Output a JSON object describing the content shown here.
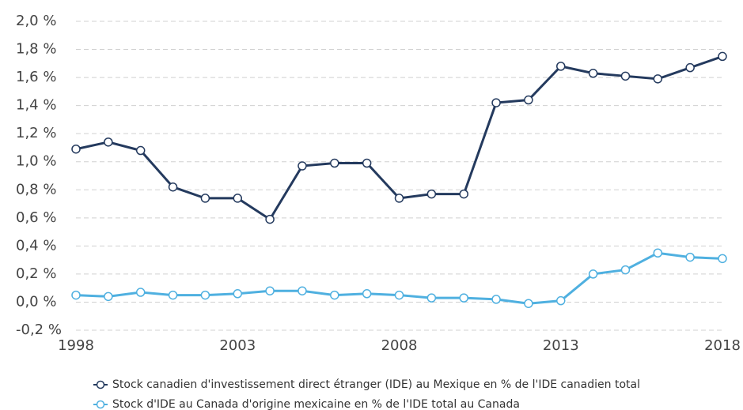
{
  "chart_data": {
    "type": "line",
    "x": [
      1998,
      1999,
      2000,
      2001,
      2002,
      2003,
      2004,
      2005,
      2006,
      2007,
      2008,
      2009,
      2010,
      2011,
      2012,
      2013,
      2014,
      2015,
      2016,
      2017,
      2018
    ],
    "series": [
      {
        "name": "Stock canadien d'investissement direct étranger (IDE) au Mexique en % de l'IDE canadien total",
        "color": "#243a5e",
        "values": [
          1.09,
          1.14,
          1.08,
          0.82,
          0.74,
          0.74,
          0.59,
          0.97,
          0.99,
          0.99,
          0.74,
          0.77,
          0.77,
          1.42,
          1.44,
          1.68,
          1.63,
          1.61,
          1.59,
          1.67,
          1.75
        ]
      },
      {
        "name": "Stock d'IDE au Canada d'origine mexicaine en % de l'IDE total au Canada",
        "color": "#4fb0e0",
        "values": [
          0.05,
          0.04,
          0.07,
          0.05,
          0.05,
          0.06,
          0.08,
          0.08,
          0.05,
          0.06,
          0.05,
          0.03,
          0.03,
          0.02,
          -0.01,
          0.01,
          0.2,
          0.23,
          0.35,
          0.32,
          0.31
        ]
      }
    ],
    "xlim": [
      1998,
      2018
    ],
    "xticks": [
      1998,
      2003,
      2008,
      2013,
      2018
    ],
    "ylim": [
      -0.2,
      2.0
    ],
    "yticks": [
      {
        "value": -0.2,
        "label": "-0,2 %"
      },
      {
        "value": 0,
        "label": "0,0 %"
      },
      {
        "value": 0.2,
        "label": "0,2 %"
      },
      {
        "value": 0.4,
        "label": "0,4 %"
      },
      {
        "value": 0.6,
        "label": "0,6 %"
      },
      {
        "value": 0.8,
        "label": "0,8 %"
      },
      {
        "value": 1.0,
        "label": "1,0 %"
      },
      {
        "value": 1.2,
        "label": "1,2 %"
      },
      {
        "value": 1.4,
        "label": "1,4 %"
      },
      {
        "value": 1.6,
        "label": "1,6 %"
      },
      {
        "value": 1.8,
        "label": "1,8 %"
      },
      {
        "value": 2.0,
        "label": "2,0 %"
      }
    ],
    "grid": true
  }
}
